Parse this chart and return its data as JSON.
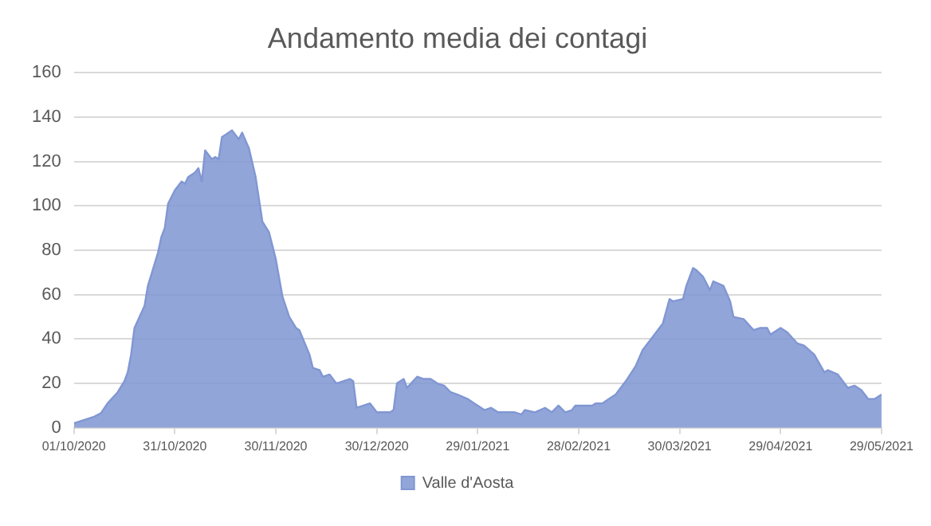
{
  "chart_data": {
    "type": "area",
    "title": "Andamento media dei contagi",
    "x": [
      "2020-10-01",
      "2020-10-03",
      "2020-10-05",
      "2020-10-07",
      "2020-10-09",
      "2020-10-11",
      "2020-10-14",
      "2020-10-16",
      "2020-10-17",
      "2020-10-18",
      "2020-10-19",
      "2020-10-22",
      "2020-10-23",
      "2020-10-26",
      "2020-10-27",
      "2020-10-28",
      "2020-10-29",
      "2020-10-31",
      "2020-11-02",
      "2020-11-03",
      "2020-11-04",
      "2020-11-06",
      "2020-11-07",
      "2020-11-08",
      "2020-11-09",
      "2020-11-11",
      "2020-11-12",
      "2020-11-13",
      "2020-11-14",
      "2020-11-15",
      "2020-11-17",
      "2020-11-19",
      "2020-11-20",
      "2020-11-22",
      "2020-11-24",
      "2020-11-26",
      "2020-11-28",
      "2020-11-30",
      "2020-12-02",
      "2020-12-04",
      "2020-12-06",
      "2020-12-07",
      "2020-12-10",
      "2020-12-11",
      "2020-12-13",
      "2020-12-14",
      "2020-12-16",
      "2020-12-18",
      "2020-12-20",
      "2020-12-22",
      "2020-12-23",
      "2020-12-24",
      "2020-12-26",
      "2020-12-28",
      "2020-12-30",
      "2021-01-03",
      "2021-01-04",
      "2021-01-05",
      "2021-01-07",
      "2021-01-08",
      "2021-01-11",
      "2021-01-13",
      "2021-01-15",
      "2021-01-17",
      "2021-01-19",
      "2021-01-21",
      "2021-01-23",
      "2021-01-26",
      "2021-01-28",
      "2021-01-31",
      "2021-02-02",
      "2021-02-04",
      "2021-02-09",
      "2021-02-11",
      "2021-02-12",
      "2021-02-15",
      "2021-02-18",
      "2021-02-20",
      "2021-02-22",
      "2021-02-24",
      "2021-02-26",
      "2021-02-27",
      "2021-03-04",
      "2021-03-05",
      "2021-03-07",
      "2021-03-09",
      "2021-03-11",
      "2021-03-14",
      "2021-03-17",
      "2021-03-19",
      "2021-03-21",
      "2021-03-25",
      "2021-03-27",
      "2021-03-28",
      "2021-03-31",
      "2021-04-01",
      "2021-04-03",
      "2021-04-04",
      "2021-04-06",
      "2021-04-08",
      "2021-04-09",
      "2021-04-12",
      "2021-04-14",
      "2021-04-15",
      "2021-04-18",
      "2021-04-21",
      "2021-04-23",
      "2021-04-25",
      "2021-04-26",
      "2021-04-29",
      "2021-05-01",
      "2021-05-04",
      "2021-05-06",
      "2021-05-09",
      "2021-05-12",
      "2021-05-13",
      "2021-05-16",
      "2021-05-19",
      "2021-05-21",
      "2021-05-23",
      "2021-05-25",
      "2021-05-27",
      "2021-05-29"
    ],
    "series": [
      {
        "name": "Valle d'Aosta",
        "color": "#8197d3",
        "values": [
          2,
          3,
          4,
          5,
          6.5,
          11,
          16,
          21,
          25,
          33,
          45,
          55,
          64,
          79,
          86,
          90,
          101,
          107,
          111,
          110,
          113,
          115,
          117,
          111,
          125,
          121,
          122,
          121,
          131,
          132,
          134,
          130,
          133,
          126,
          113,
          93,
          88,
          76,
          59,
          50,
          45,
          44,
          33,
          27,
          26,
          23,
          24,
          20,
          21,
          22,
          21,
          9,
          10,
          11,
          7,
          7,
          8,
          20,
          22,
          18,
          23,
          22,
          22,
          20,
          19,
          16,
          15,
          13,
          11,
          8,
          9,
          7,
          7,
          6,
          8,
          7,
          9,
          7,
          10,
          7,
          8,
          10,
          10,
          11,
          11,
          13,
          15,
          21,
          28,
          35,
          39,
          47,
          58,
          57,
          58,
          64,
          72,
          71,
          68,
          62,
          66,
          64,
          57,
          50,
          49,
          44,
          45,
          45,
          42,
          45,
          43,
          38,
          37,
          33,
          25,
          26,
          24,
          18,
          19,
          17,
          13,
          13,
          15
        ]
      }
    ],
    "xlim": [
      "2020-10-01",
      "2021-05-29"
    ],
    "xticks": [
      {
        "value": "2020-10-01",
        "label": "01/10/2020"
      },
      {
        "value": "2020-10-31",
        "label": "31/10/2020"
      },
      {
        "value": "2020-11-30",
        "label": "30/11/2020"
      },
      {
        "value": "2020-12-30",
        "label": "30/12/2020"
      },
      {
        "value": "2021-01-29",
        "label": "29/01/2021"
      },
      {
        "value": "2021-02-28",
        "label": "28/02/2021"
      },
      {
        "value": "2021-03-30",
        "label": "30/03/2021"
      },
      {
        "value": "2021-04-29",
        "label": "29/04/2021"
      },
      {
        "value": "2021-05-29",
        "label": "29/05/2021"
      }
    ],
    "ylim": [
      0,
      160
    ],
    "yticks": [
      0,
      20,
      40,
      60,
      80,
      100,
      120,
      140,
      160
    ],
    "grid": "y",
    "legend": "bottom"
  }
}
